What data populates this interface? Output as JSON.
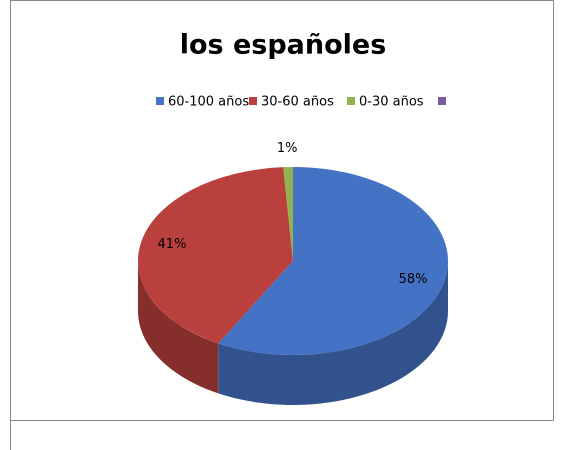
{
  "chart_data": {
    "type": "pie",
    "title": "los españoles",
    "categories": [
      "60-100 años",
      "30-60 años",
      "0-30 años",
      null
    ],
    "values": [
      58,
      41,
      1,
      null
    ],
    "value_labels": [
      "58%",
      "41%",
      "1%",
      null
    ],
    "colors": [
      "#4472c4",
      "#b9403d",
      "#92b450",
      "#7a5c9f"
    ],
    "legend": "top"
  }
}
